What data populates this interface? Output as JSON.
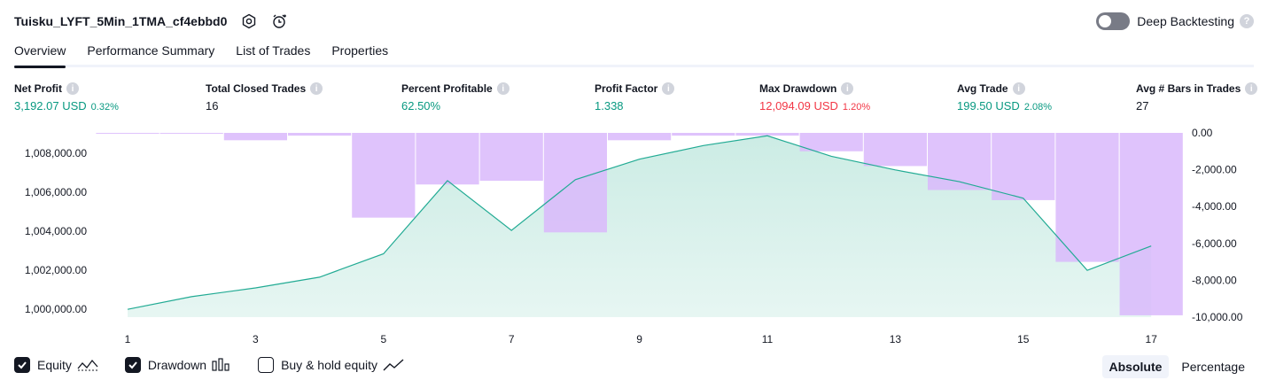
{
  "header": {
    "strategy_name": "Tuisku_LYFT_5Min_1TMA_cf4ebbd0",
    "deep_backtesting_label": "Deep Backtesting",
    "help_glyph": "?",
    "icons": [
      "settings-icon",
      "alert-clock-icon",
      "help-icon"
    ]
  },
  "tabs": [
    {
      "label": "Overview",
      "active": true
    },
    {
      "label": "Performance Summary",
      "active": false
    },
    {
      "label": "List of Trades",
      "active": false
    },
    {
      "label": "Properties",
      "active": false
    }
  ],
  "metrics": [
    {
      "label": "Net Profit",
      "value": "3,192.07 USD",
      "pct": "0.32%",
      "tone": "pos"
    },
    {
      "label": "Total Closed Trades",
      "value": "16",
      "pct": "",
      "tone": "neutral"
    },
    {
      "label": "Percent Profitable",
      "value": "62.50%",
      "pct": "",
      "tone": "pos"
    },
    {
      "label": "Profit Factor",
      "value": "1.338",
      "pct": "",
      "tone": "pos"
    },
    {
      "label": "Max Drawdown",
      "value": "12,094.09 USD",
      "pct": "1.20%",
      "tone": "neg"
    },
    {
      "label": "Avg Trade",
      "value": "199.50 USD",
      "pct": "2.08%",
      "tone": "pos"
    },
    {
      "label": "Avg # Bars in Trades",
      "value": "27",
      "pct": "",
      "tone": "neutral"
    }
  ],
  "legend": {
    "equity_label": "Equity",
    "drawdown_label": "Drawdown",
    "buyhold_label": "Buy & hold equity",
    "equity_checked": true,
    "drawdown_checked": true,
    "buyhold_checked": false
  },
  "mode": {
    "absolute_label": "Absolute",
    "percentage_label": "Percentage",
    "active": "Absolute"
  },
  "colors": {
    "equity_line": "#22ab94",
    "equity_fill": "#c9ebe3",
    "drawdown_bar": "#d9b8fb",
    "positive": "#089981",
    "negative": "#f23645"
  },
  "chart_data": {
    "type": "area",
    "title": "",
    "x": [
      1,
      2,
      3,
      4,
      5,
      6,
      7,
      8,
      9,
      10,
      11,
      12,
      13,
      14,
      15,
      16,
      17
    ],
    "x_tick_labels": [
      "1",
      "3",
      "5",
      "7",
      "9",
      "11",
      "13",
      "15",
      "17"
    ],
    "x_tick_values": [
      1,
      3,
      5,
      7,
      9,
      11,
      13,
      15,
      17
    ],
    "series": [
      {
        "name": "Equity",
        "axis": "left",
        "kind": "area",
        "values": [
          1000000,
          1000650,
          1001100,
          1001650,
          1002850,
          1006600,
          1004050,
          1006650,
          1007700,
          1008400,
          1008900,
          1007850,
          1007150,
          1006550,
          1005700,
          1002000,
          1003250
        ]
      },
      {
        "name": "Drawdown",
        "axis": "right",
        "kind": "bar",
        "values": [
          -30,
          -30,
          -400,
          -150,
          -4600,
          -2800,
          -2600,
          -5400,
          -400,
          -150,
          -150,
          -1000,
          -1800,
          -3100,
          -3650,
          -7000,
          -9900
        ]
      }
    ],
    "left_axis": {
      "ylim": [
        999600,
        1009050
      ],
      "ticks": [
        1000000,
        1002000,
        1004000,
        1006000,
        1008000
      ],
      "tick_labels": [
        "1,000,000.00",
        "1,002,000.00",
        "1,004,000.00",
        "1,006,000.00",
        "1,008,000.00"
      ]
    },
    "right_axis": {
      "ylim": [
        -10000,
        0
      ],
      "ticks": [
        0,
        -2000,
        -4000,
        -6000,
        -8000,
        -10000
      ],
      "tick_labels": [
        "0.00",
        "-2,000.00",
        "-4,000.00",
        "-6,000.00",
        "-8,000.00",
        "-10,000.00"
      ]
    },
    "grid": false
  }
}
